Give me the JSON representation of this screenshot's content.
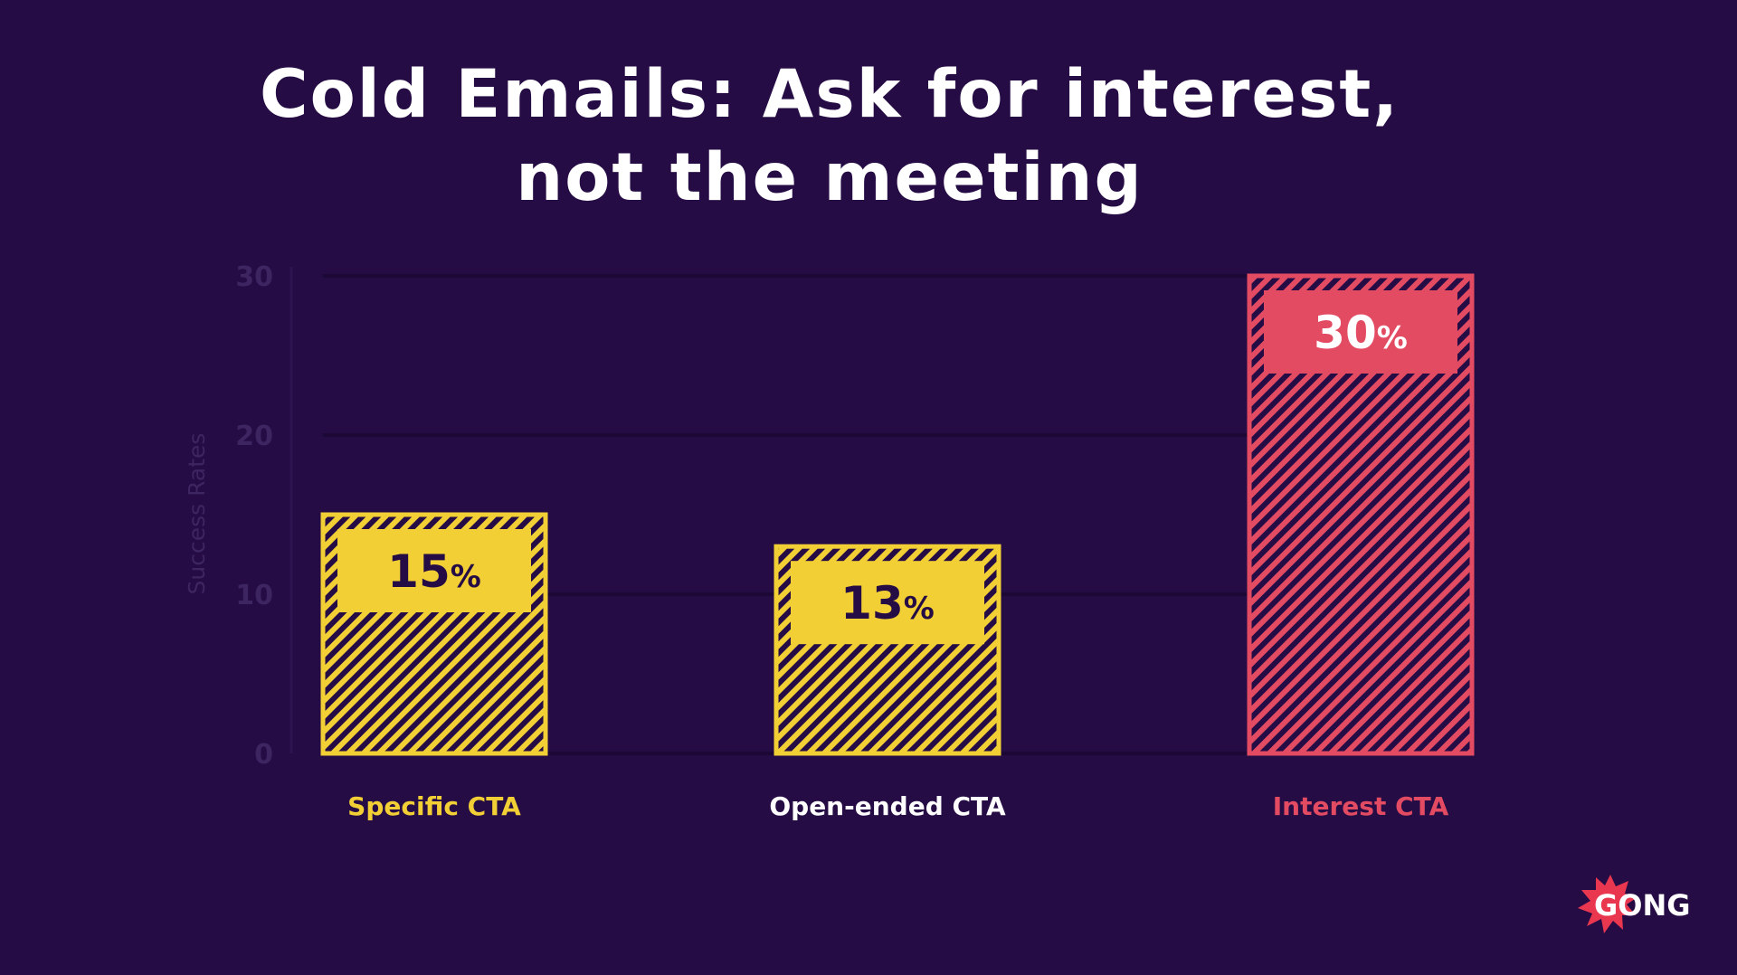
{
  "title_lines": [
    "Cold Emails: Ask for interest,",
    "not the meeting"
  ],
  "chart_data": {
    "type": "bar",
    "title": "Cold Emails: Ask for interest, not the meeting",
    "ylabel": "Success Rates",
    "xlabel": "",
    "ylim": [
      0,
      30
    ],
    "yticks": [
      0,
      10,
      20,
      30
    ],
    "grid": true,
    "categories": [
      "Specific CTA",
      "Open-ended CTA",
      "Interest CTA"
    ],
    "values": [
      15,
      13,
      30
    ],
    "value_labels": [
      "15%",
      "13%",
      "30%"
    ],
    "category_label_colors": [
      "#f1cf35",
      "#ffffff",
      "#e34b62"
    ],
    "bar_colors": [
      "#f1cf35",
      "#f1cf35",
      "#e34b62"
    ],
    "bar_label_text_colors": [
      "#260c45",
      "#260c45",
      "#ffffff"
    ]
  },
  "logo": {
    "text": "GONG",
    "color": "#e8374f"
  }
}
